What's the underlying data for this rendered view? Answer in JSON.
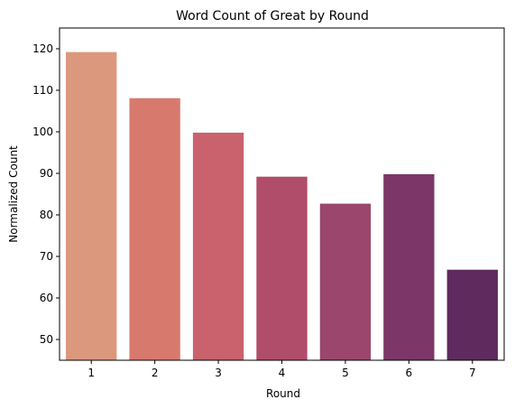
{
  "chart_data": {
    "type": "bar",
    "title": "Word Count of Great by Round",
    "xlabel": "Round",
    "ylabel": "Normalized Count",
    "categories": [
      "1",
      "2",
      "3",
      "4",
      "5",
      "6",
      "7"
    ],
    "values": [
      119.2,
      108.1,
      99.8,
      89.2,
      82.7,
      89.8,
      66.8
    ],
    "colors": [
      "#dc987c",
      "#d77a6d",
      "#c9626c",
      "#b04d6a",
      "#9a466d",
      "#7c3768",
      "#5f2b5f"
    ],
    "ylim": [
      45,
      125
    ],
    "yticks": [
      50,
      60,
      70,
      80,
      90,
      100,
      110,
      120
    ],
    "grid": false,
    "legend": "none"
  }
}
